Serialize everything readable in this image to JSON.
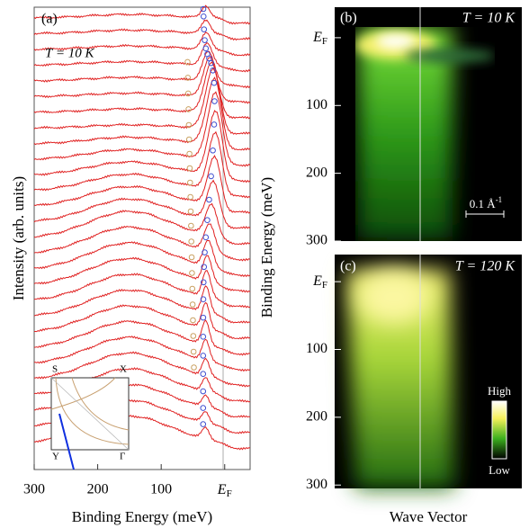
{
  "panel_a": {
    "label": "(a)",
    "temperature": "T = 10 K",
    "xlabel": "Binding Energy (meV)",
    "ylabel": "Intensity (arb. units)",
    "xlim": [
      300,
      -40
    ],
    "xticks": [
      300,
      200,
      100,
      {
        "value": 0,
        "label": "E",
        "subscript": "F"
      }
    ],
    "inset_labels": [
      "S",
      "X",
      "Y",
      "Γ"
    ]
  },
  "panel_b": {
    "label": "(b)",
    "temperature": "T = 10 K",
    "scale_bar": "0.1 Å",
    "scale_bar_sup": "-1",
    "ylim": [
      -45,
      300
    ],
    "yticks": [
      {
        "value": 0,
        "label": "E",
        "subscript": "F"
      },
      100,
      200,
      300
    ]
  },
  "panel_c": {
    "label": "(c)",
    "temperature": "T = 120 K",
    "colorbar_high": "High",
    "colorbar_low": "Low",
    "ylim": [
      -40,
      305
    ],
    "yticks": [
      {
        "value": 0,
        "label": "E",
        "subscript": "F"
      },
      100,
      200,
      300
    ]
  },
  "ylabel_right": "Binding Energy (meV)",
  "xlabel_right": "Wave Vector"
}
